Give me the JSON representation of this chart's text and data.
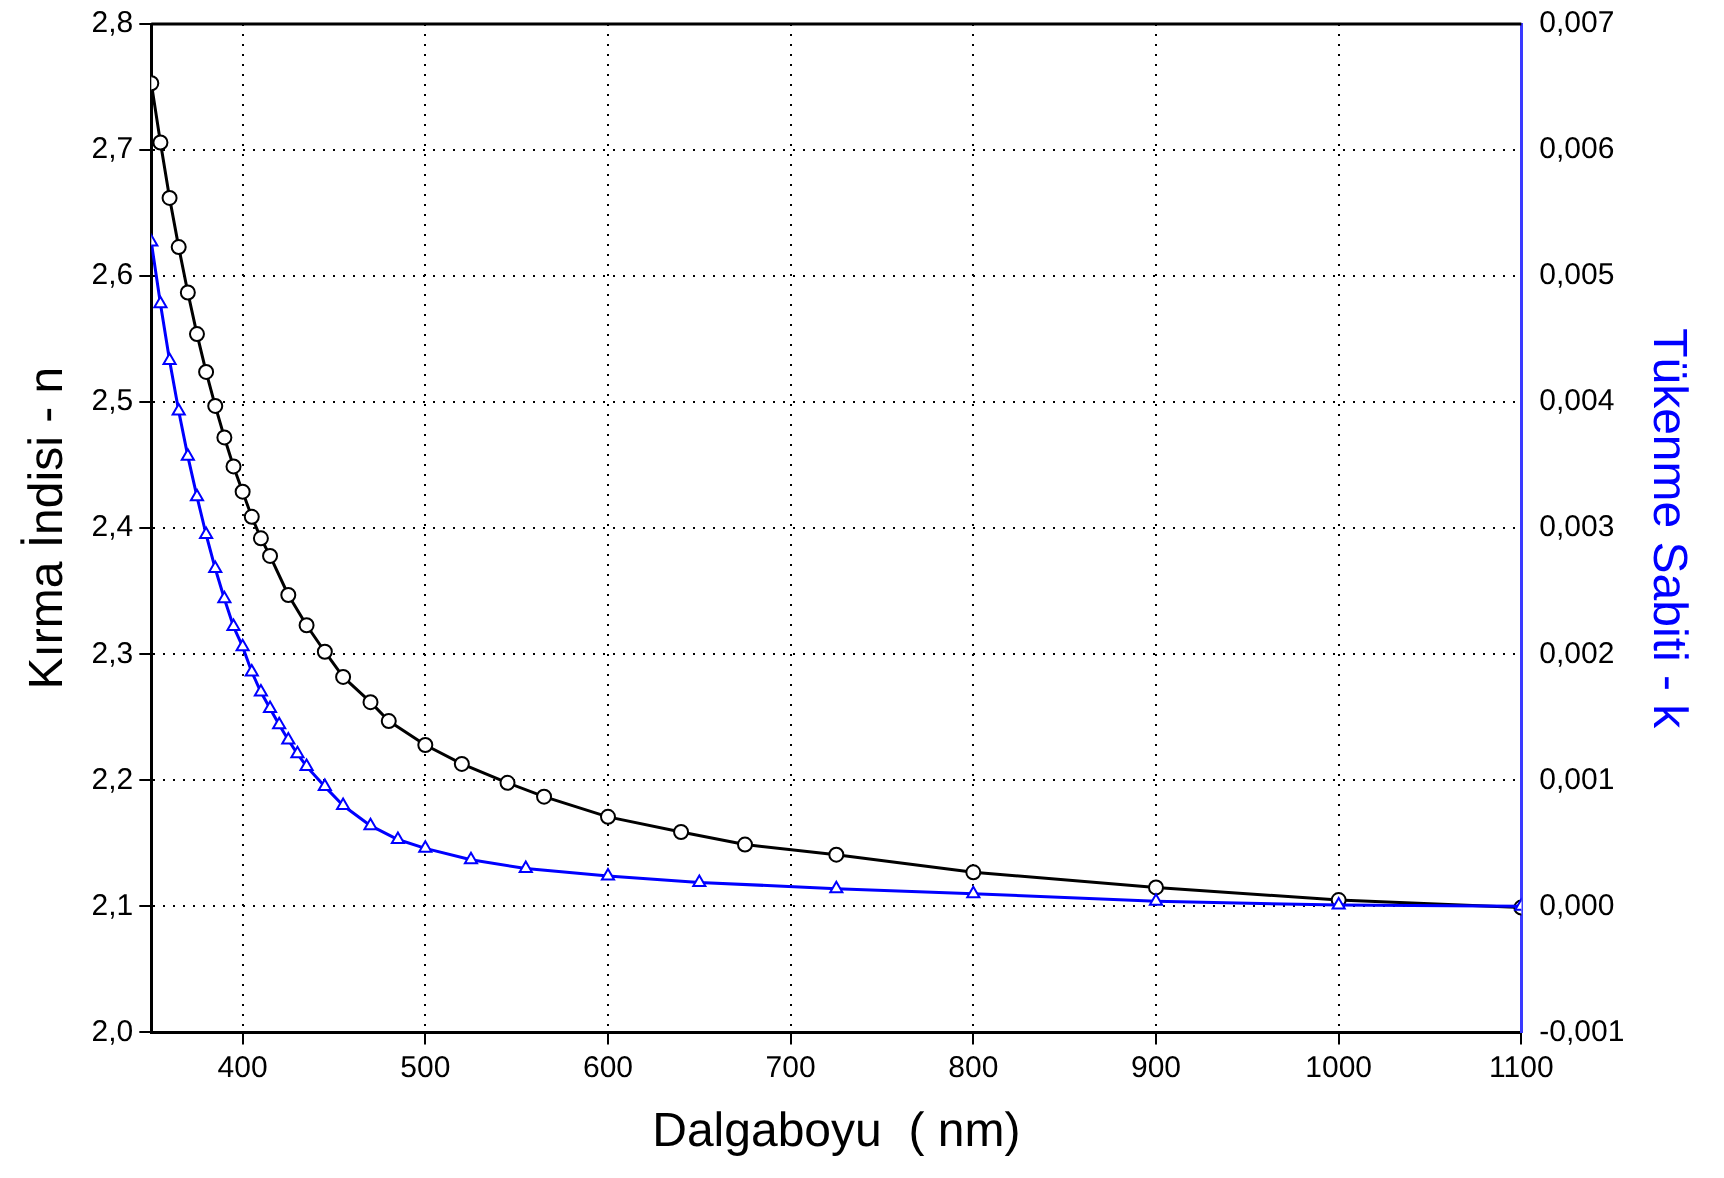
{
  "chart_data": {
    "type": "line",
    "xlabel": "Dalgaboyu  ( nm)",
    "ylabel": "Kırma İndisi - n",
    "y2label": "Tükenme Sabiti - k",
    "xlim": [
      350,
      1100
    ],
    "xticks": [
      400,
      500,
      600,
      700,
      800,
      900,
      1000,
      1100
    ],
    "ylim": [
      2.0,
      2.8
    ],
    "yticks": [
      {
        "value": 2.0,
        "label": "2,0"
      },
      {
        "value": 2.1,
        "label": "2,1"
      },
      {
        "value": 2.2,
        "label": "2,2"
      },
      {
        "value": 2.3,
        "label": "2,3"
      },
      {
        "value": 2.4,
        "label": "2,4"
      },
      {
        "value": 2.5,
        "label": "2,5"
      },
      {
        "value": 2.6,
        "label": "2,6"
      },
      {
        "value": 2.7,
        "label": "2,7"
      },
      {
        "value": 2.8,
        "label": "2,8"
      }
    ],
    "y2lim": [
      -0.001,
      0.007
    ],
    "y2ticks": [
      {
        "value": -0.001,
        "label": "-0,001"
      },
      {
        "value": 0,
        "label": "0,000"
      },
      {
        "value": 0.001,
        "label": "0,001"
      },
      {
        "value": 0.002,
        "label": "0,002"
      },
      {
        "value": 0.003,
        "label": "0,003"
      },
      {
        "value": 0.004,
        "label": "0,004"
      },
      {
        "value": 0.005,
        "label": "0,005"
      },
      {
        "value": 0.006,
        "label": "0,006"
      },
      {
        "value": 0.007,
        "label": "0,007"
      }
    ],
    "grid": true,
    "series": [
      {
        "color": "#000000",
        "marker": "circle",
        "x": [
          350,
          355,
          360,
          365,
          370,
          375,
          380,
          385,
          390,
          395,
          400,
          405,
          410,
          415,
          425,
          435,
          445,
          455,
          470,
          480,
          500,
          520,
          545,
          565,
          600,
          640,
          675,
          725,
          800,
          900,
          1000,
          1100
        ],
        "values": [
          2.753,
          2.706,
          2.662,
          2.623,
          2.587,
          2.554,
          2.524,
          2.497,
          2.472,
          2.449,
          2.429,
          2.409,
          2.392,
          2.378,
          2.347,
          2.323,
          2.302,
          2.282,
          2.262,
          2.247,
          2.228,
          2.213,
          2.198,
          2.187,
          2.171,
          2.159,
          2.149,
          2.141,
          2.127,
          2.115,
          2.105,
          2.099
        ]
      },
      {
        "color": "#0000ff",
        "marker": "triangle",
        "axis": "y2",
        "x": [
          350,
          355,
          360,
          365,
          370,
          375,
          380,
          385,
          390,
          395,
          400,
          405,
          410,
          415,
          420,
          425,
          430,
          435,
          445,
          455,
          470,
          485,
          500,
          525,
          555,
          600,
          650,
          725,
          800,
          900,
          1000,
          1100
        ],
        "values": [
          0.00527,
          0.00478,
          0.00433,
          0.00393,
          0.00357,
          0.00325,
          0.00295,
          0.00268,
          0.00244,
          0.00222,
          0.00206,
          0.00186,
          0.0017,
          0.00157,
          0.00144,
          0.00132,
          0.00121,
          0.00111,
          0.00095,
          0.0008,
          0.00064,
          0.00053,
          0.00046,
          0.00037,
          0.0003,
          0.00024,
          0.00019,
          0.00014,
          0.0001,
          4e-05,
          1e-05,
          0
        ]
      }
    ]
  }
}
